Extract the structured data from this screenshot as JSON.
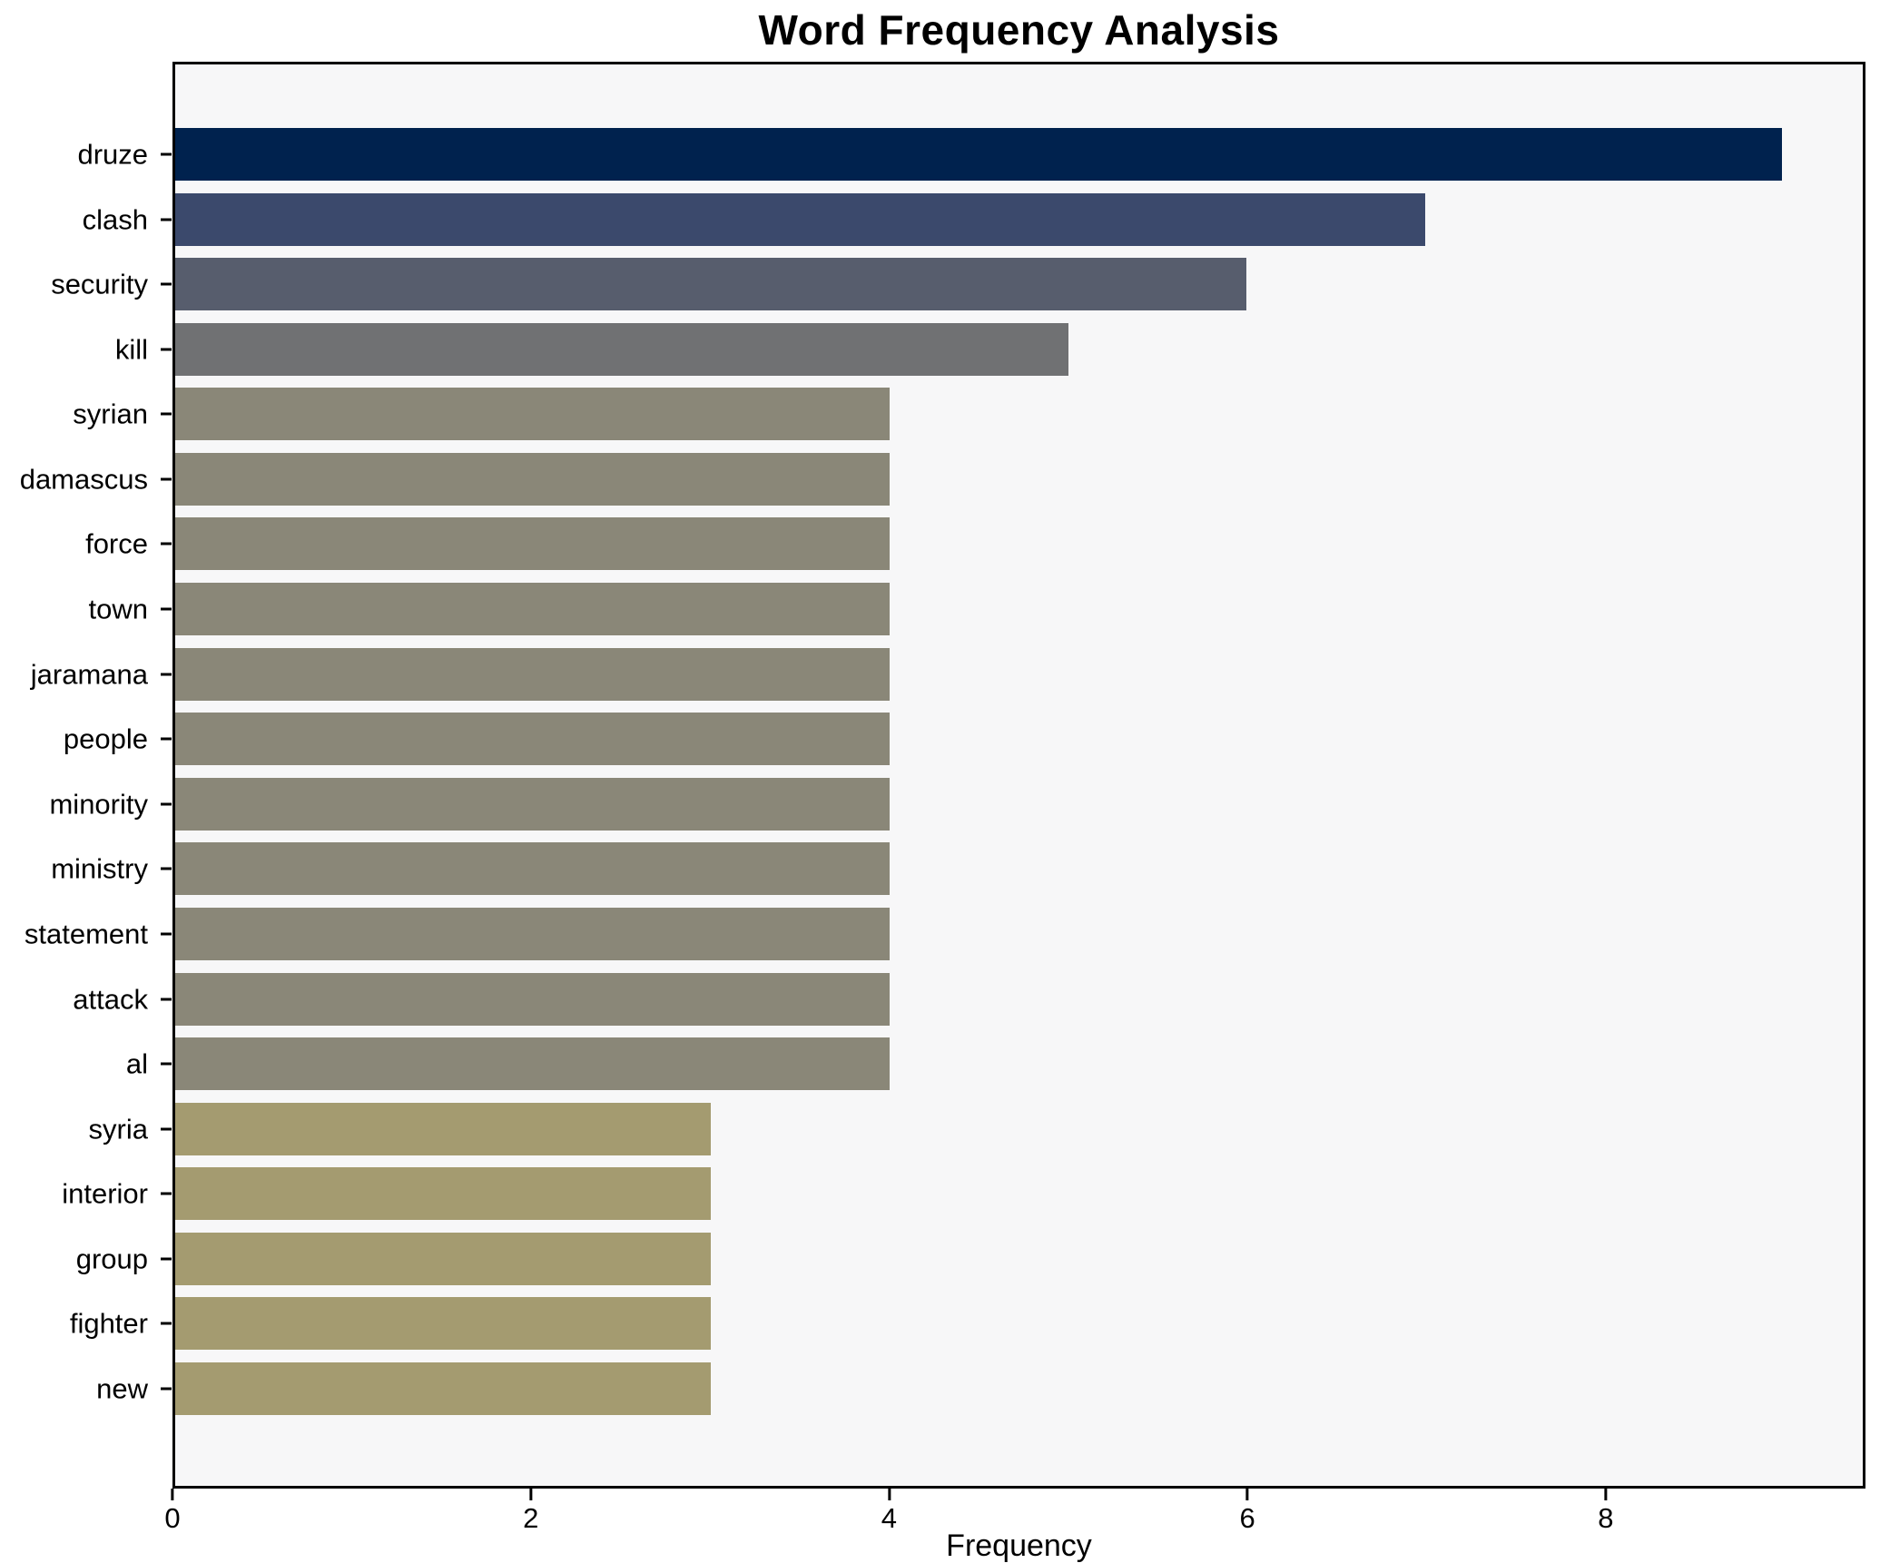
{
  "title": "Word Frequency Analysis",
  "chart_data": {
    "type": "bar",
    "orientation": "horizontal",
    "title": "Word Frequency Analysis",
    "xlabel": "Frequency",
    "ylabel": "",
    "categories": [
      "druze",
      "clash",
      "security",
      "kill",
      "syrian",
      "damascus",
      "force",
      "town",
      "jaramana",
      "people",
      "minority",
      "ministry",
      "statement",
      "attack",
      "al",
      "syria",
      "interior",
      "group",
      "fighter",
      "new"
    ],
    "values": [
      9,
      7,
      6,
      5,
      4,
      4,
      4,
      4,
      4,
      4,
      4,
      4,
      4,
      4,
      4,
      3,
      3,
      3,
      3,
      3
    ],
    "bar_colors": [
      "#00224e",
      "#3b496c",
      "#575d6d",
      "#707173",
      "#8a8778",
      "#8a8778",
      "#8a8778",
      "#8a8778",
      "#8a8778",
      "#8a8778",
      "#8a8778",
      "#8a8778",
      "#8a8778",
      "#8a8778",
      "#8a8778",
      "#a49b70",
      "#a49b70",
      "#a49b70",
      "#a49b70",
      "#a49b70"
    ],
    "xlim": [
      0,
      9.45
    ],
    "xticks": [
      0,
      2,
      4,
      6,
      8
    ],
    "grid": false,
    "legend_position": "none",
    "plot_background": "#f7f7f8",
    "figure_background": "#ffffff",
    "axis_color": "#000000"
  }
}
